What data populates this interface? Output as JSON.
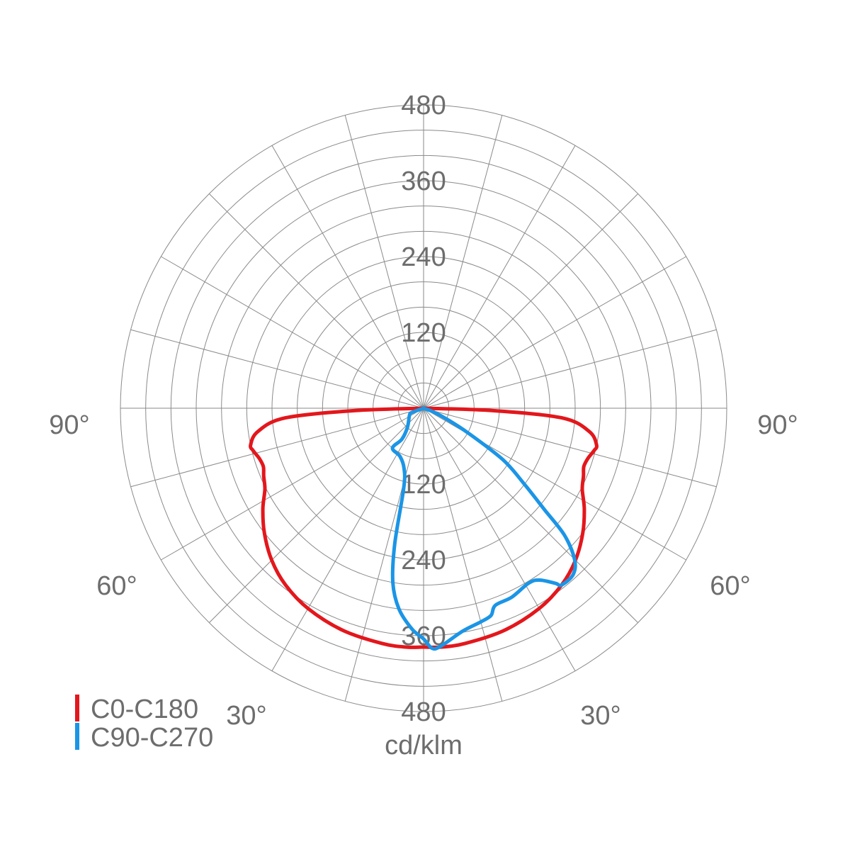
{
  "chart_data": {
    "type": "polar",
    "unit_label": "cd/klm",
    "ring_values": [
      40,
      80,
      120,
      160,
      200,
      240,
      280,
      320,
      360,
      400,
      440,
      480
    ],
    "ring_labels_top": [
      "120",
      "240",
      "360",
      "480"
    ],
    "ring_labels_bottom": [
      "120",
      "240",
      "360",
      "480"
    ],
    "ring_label_values": [
      120,
      240,
      360,
      480
    ],
    "max_value": 480,
    "spoke_step_deg": 15,
    "angle_labels": [
      {
        "text": "90°",
        "side": "left",
        "angle": 90
      },
      {
        "text": "60°",
        "side": "left",
        "angle": 60
      },
      {
        "text": "30°",
        "side": "left",
        "angle": 30
      },
      {
        "text": "90°",
        "side": "right",
        "angle": 90
      },
      {
        "text": "60°",
        "side": "right",
        "angle": 60
      },
      {
        "text": "30°",
        "side": "right",
        "angle": 30
      }
    ],
    "legend": [
      {
        "label": "C0-C180",
        "color": "#e3171c"
      },
      {
        "label": "C90-C270",
        "color": "#1b95e6"
      }
    ],
    "series": [
      {
        "name": "C0-C180",
        "color": "#e3171c",
        "points": [
          [
            -90,
            0
          ],
          [
            -88,
            110
          ],
          [
            -86,
            220
          ],
          [
            -82,
            265
          ],
          [
            -78,
            280
          ],
          [
            -76,
            278
          ],
          [
            -73,
            272
          ],
          [
            -70,
            270
          ],
          [
            -67,
            275
          ],
          [
            -63,
            282
          ],
          [
            -58,
            300
          ],
          [
            -52,
            320
          ],
          [
            -45,
            340
          ],
          [
            -38,
            355
          ],
          [
            -30,
            366
          ],
          [
            -20,
            374
          ],
          [
            -10,
            378
          ],
          [
            -4,
            379
          ],
          [
            0,
            378
          ],
          [
            4,
            379
          ],
          [
            10,
            378
          ],
          [
            20,
            374
          ],
          [
            30,
            366
          ],
          [
            38,
            355
          ],
          [
            45,
            340
          ],
          [
            52,
            320
          ],
          [
            58,
            300
          ],
          [
            63,
            282
          ],
          [
            67,
            275
          ],
          [
            70,
            270
          ],
          [
            73,
            272
          ],
          [
            76,
            278
          ],
          [
            78,
            280
          ],
          [
            82,
            265
          ],
          [
            86,
            220
          ],
          [
            88,
            110
          ],
          [
            90,
            0
          ]
        ]
      },
      {
        "name": "C90-C270",
        "color": "#1b95e6",
        "points": [
          [
            -75,
            0
          ],
          [
            -70,
            20
          ],
          [
            -63,
            25
          ],
          [
            -40,
            40
          ],
          [
            -35,
            60
          ],
          [
            -38,
            80
          ],
          [
            -26,
            85
          ],
          [
            -18,
            100
          ],
          [
            -14,
            130
          ],
          [
            -12,
            220
          ],
          [
            -10,
            280
          ],
          [
            -7,
            320
          ],
          [
            -3,
            350
          ],
          [
            0,
            365
          ],
          [
            2,
            380
          ],
          [
            4,
            378
          ],
          [
            10,
            358
          ],
          [
            15,
            350
          ],
          [
            18,
            345
          ],
          [
            20,
            332
          ],
          [
            25,
            330
          ],
          [
            31,
            323
          ],
          [
            34,
            328
          ],
          [
            37,
            347
          ],
          [
            38,
            355
          ],
          [
            42,
            354
          ],
          [
            45,
            338
          ],
          [
            48,
            300
          ],
          [
            50,
            250
          ],
          [
            53,
            200
          ],
          [
            57,
            150
          ],
          [
            61,
            80
          ],
          [
            65,
            40
          ],
          [
            70,
            15
          ],
          [
            75,
            0
          ]
        ]
      }
    ]
  }
}
